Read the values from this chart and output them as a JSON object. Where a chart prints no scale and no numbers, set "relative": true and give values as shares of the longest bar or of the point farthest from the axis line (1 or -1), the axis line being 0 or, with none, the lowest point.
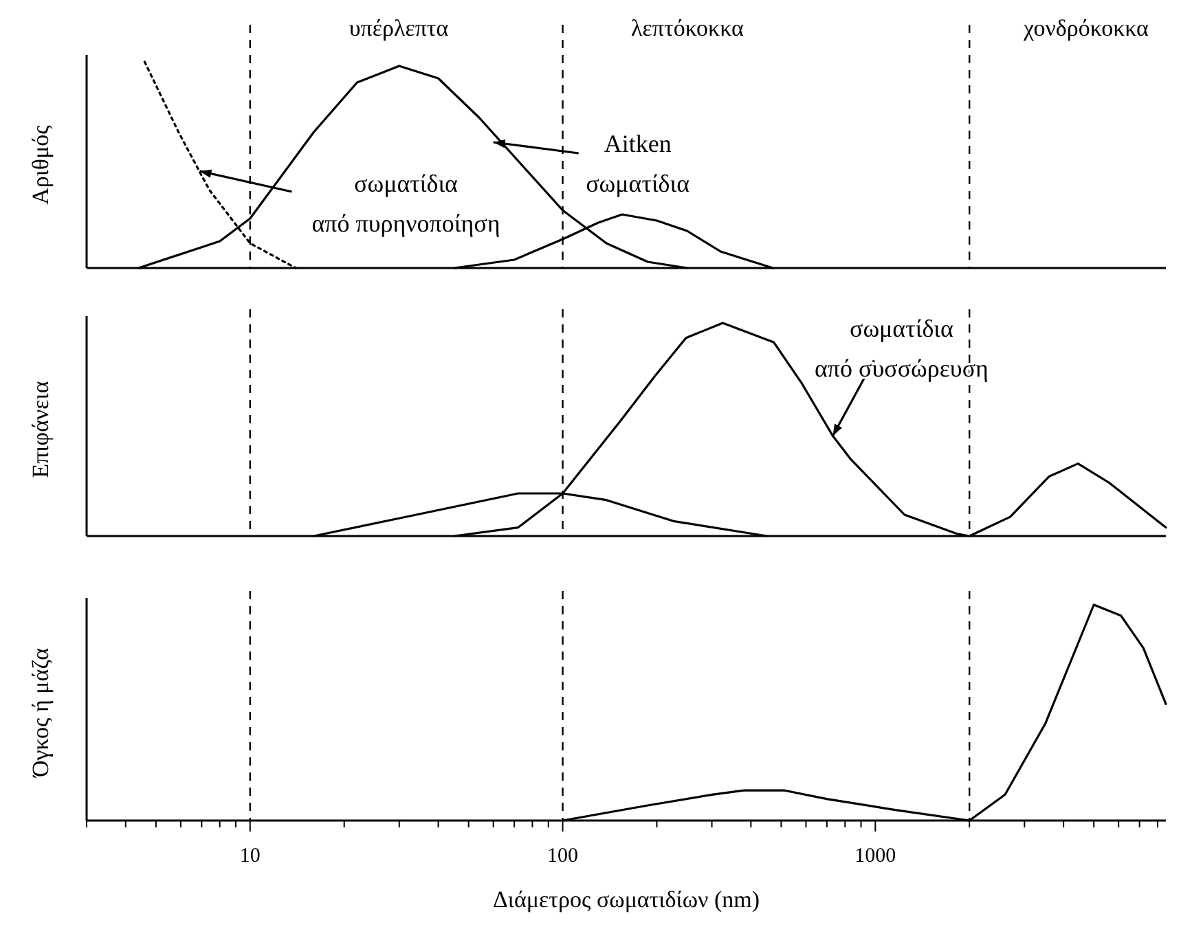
{
  "chart_data": [
    {
      "type": "line",
      "relative": true,
      "log": "x",
      "xlim": [
        3,
        8500
      ],
      "tick_labels": false,
      "ylabel": "Αριθμός",
      "annotations": [
        "υπέρλεπτα",
        "λεπτόκοκκα",
        "χονδρόκοκκα",
        {
          "text": "σωματίδια\nαπό πυρηνοποίηση",
          "x": 6.9,
          "y": 0.47
        },
        {
          "text": "Aitken\nσωματίδια",
          "x": 60,
          "y": 0.61
        }
      ],
      "ref_lines": [
        {
          "axis": "x",
          "value": 10,
          "line_style": "dashed"
        },
        {
          "axis": "x",
          "value": 100,
          "line_style": "dashed"
        },
        {
          "axis": "x",
          "value": 2000,
          "line_style": "dashed"
        }
      ],
      "series": [
        {
          "color": "#000000",
          "line_style": "dotted",
          "x": [
            4.6,
            5.9,
            7.4,
            10,
            14
          ],
          "values": [
            1,
            0.66,
            0.38,
            0.12,
            0
          ]
        },
        {
          "color": "#000000",
          "line_style": "solid",
          "x": [
            4.4,
            8,
            10,
            16,
            22,
            30,
            40,
            54,
            75,
            100,
            138,
            187,
            250
          ],
          "values": [
            0,
            0.13,
            0.24,
            0.66,
            0.9,
            0.98,
            0.92,
            0.73,
            0.49,
            0.28,
            0.12,
            0.03,
            0
          ]
        },
        {
          "color": "#000000",
          "line_style": "solid",
          "x": [
            45,
            70,
            100,
            130,
            155,
            200,
            250,
            320,
            470
          ],
          "values": [
            0,
            0.04,
            0.14,
            0.22,
            0.26,
            0.23,
            0.18,
            0.08,
            0
          ]
        }
      ]
    },
    {
      "type": "line",
      "relative": true,
      "log": "x",
      "xlim": [
        3,
        8500
      ],
      "tick_labels": false,
      "ylabel": "Επιφάνεια",
      "annotations": [
        {
          "text": "σωματίδια\nαπό συσσώρευση",
          "x": 731,
          "y": 0.47
        }
      ],
      "ref_lines": [
        {
          "axis": "x",
          "value": 10,
          "line_style": "dashed"
        },
        {
          "axis": "x",
          "value": 100,
          "line_style": "dashed"
        },
        {
          "axis": "x",
          "value": 2000,
          "line_style": "dashed"
        }
      ],
      "series": [
        {
          "color": "#000000",
          "line_style": "solid",
          "x": [
            16,
            34,
            72,
            100,
            137,
            226,
            450
          ],
          "values": [
            0,
            0.1,
            0.2,
            0.2,
            0.17,
            0.07,
            0
          ]
        },
        {
          "color": "#000000",
          "line_style": "solid",
          "x": [
            45,
            72,
            100,
            153,
            197,
            248,
            325,
            473,
            580,
            731,
            835,
            1240,
            1830,
            2000,
            2700,
            3600,
            4450,
            5600,
            8500
          ],
          "values": [
            0,
            0.04,
            0.2,
            0.54,
            0.75,
            0.93,
            1,
            0.91,
            0.72,
            0.47,
            0.36,
            0.1,
            0.01,
            0,
            0.09,
            0.28,
            0.34,
            0.25,
            0.04
          ]
        }
      ]
    },
    {
      "type": "line",
      "relative": true,
      "log": "x",
      "xlim": [
        3,
        8500
      ],
      "tick_labels": "x",
      "ylabel": "Όγκος ή μάζα",
      "xlabel": "Διάμετρος σωματιδίων (nm)",
      "xticks": [
        {
          "value": 3,
          "label": null
        },
        {
          "value": 4,
          "label": null
        },
        {
          "value": 5,
          "label": null
        },
        {
          "value": 6,
          "label": null
        },
        {
          "value": 7,
          "label": null
        },
        {
          "value": 8,
          "label": null
        },
        {
          "value": 9,
          "label": null
        },
        10,
        {
          "value": 20,
          "label": null
        },
        {
          "value": 30,
          "label": null
        },
        {
          "value": 40,
          "label": null
        },
        {
          "value": 50,
          "label": null
        },
        {
          "value": 60,
          "label": null
        },
        {
          "value": 70,
          "label": null
        },
        {
          "value": 80,
          "label": null
        },
        {
          "value": 90,
          "label": null
        },
        100,
        {
          "value": 200,
          "label": null
        },
        {
          "value": 300,
          "label": null
        },
        {
          "value": 400,
          "label": null
        },
        {
          "value": 500,
          "label": null
        },
        {
          "value": 600,
          "label": null
        },
        {
          "value": 700,
          "label": null
        },
        {
          "value": 800,
          "label": null
        },
        {
          "value": 900,
          "label": null
        },
        1000,
        {
          "value": 2000,
          "label": null
        },
        {
          "value": 3000,
          "label": null
        },
        {
          "value": 4000,
          "label": null
        },
        {
          "value": 5000,
          "label": null
        },
        {
          "value": 6000,
          "label": null
        },
        {
          "value": 7000,
          "label": null
        },
        {
          "value": 8000,
          "label": null
        }
      ],
      "ref_lines": [
        {
          "axis": "x",
          "value": 10,
          "line_style": "dashed"
        },
        {
          "axis": "x",
          "value": 100,
          "line_style": "dashed"
        },
        {
          "axis": "x",
          "value": 2000,
          "line_style": "dashed"
        }
      ],
      "series": [
        {
          "color": "#000000",
          "line_style": "solid",
          "x": [
            100,
            187,
            300,
            380,
            510,
            700,
            1150,
            2000
          ],
          "values": [
            0,
            0.07,
            0.12,
            0.14,
            0.14,
            0.1,
            0.05,
            0
          ]
        },
        {
          "color": "#000000",
          "line_style": "solid",
          "x": [
            2000,
            2600,
            3500,
            5000,
            6100,
            7200,
            8500
          ],
          "values": [
            0,
            0.12,
            0.45,
            1,
            0.95,
            0.8,
            0.54
          ]
        }
      ]
    }
  ]
}
